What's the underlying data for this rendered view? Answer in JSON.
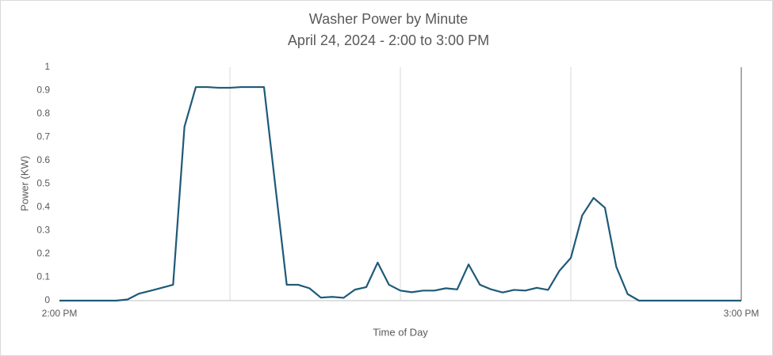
{
  "chart_data": {
    "type": "line",
    "title": "Washer Power by Minute",
    "subtitle": "April 24, 2024 - 2:00 to 3:00 PM",
    "x_label": "Time of Day",
    "y_label": "Power (KW)",
    "x": [
      0,
      1,
      2,
      3,
      4,
      5,
      6,
      7,
      8,
      9,
      10,
      11,
      12,
      13,
      14,
      15,
      16,
      17,
      18,
      19,
      20,
      21,
      22,
      23,
      24,
      25,
      26,
      27,
      28,
      29,
      30,
      31,
      32,
      33,
      34,
      35,
      36,
      37,
      38,
      39,
      40,
      41,
      42,
      43,
      44,
      45,
      46,
      47,
      48,
      49,
      50,
      51,
      52,
      53,
      54,
      55,
      56,
      57,
      58,
      59,
      60
    ],
    "series": [
      {
        "name": "Power",
        "color": "#1e5a78",
        "values": [
          0,
          0,
          0,
          0,
          0,
          0,
          0.005,
          0.03,
          0.042,
          0.055,
          0.068,
          0.745,
          0.915,
          0.915,
          0.912,
          0.912,
          0.915,
          0.915,
          0.915,
          0.49,
          0.068,
          0.068,
          0.053,
          0.013,
          0.016,
          0.012,
          0.047,
          0.058,
          0.163,
          0.068,
          0.043,
          0.036,
          0.043,
          0.043,
          0.053,
          0.048,
          0.155,
          0.068,
          0.048,
          0.035,
          0.046,
          0.043,
          0.055,
          0.046,
          0.128,
          0.183,
          0.365,
          0.44,
          0.398,
          0.145,
          0.028,
          0,
          0,
          0,
          0,
          0,
          0,
          0,
          0,
          0,
          0
        ]
      }
    ],
    "xlim": [
      0,
      60
    ],
    "xticks": [
      {
        "value": 0,
        "label": "2:00 PM"
      },
      {
        "value": 15,
        "label": null
      },
      {
        "value": 30,
        "label": null
      },
      {
        "value": 45,
        "label": null
      },
      {
        "value": 60,
        "label": "3:00 PM"
      }
    ],
    "ylim": [
      0,
      1
    ],
    "yticks": [
      0,
      0.1,
      0.2,
      0.3,
      0.4,
      0.5,
      0.6,
      0.7,
      0.8,
      0.9,
      1
    ],
    "grid": "x"
  }
}
